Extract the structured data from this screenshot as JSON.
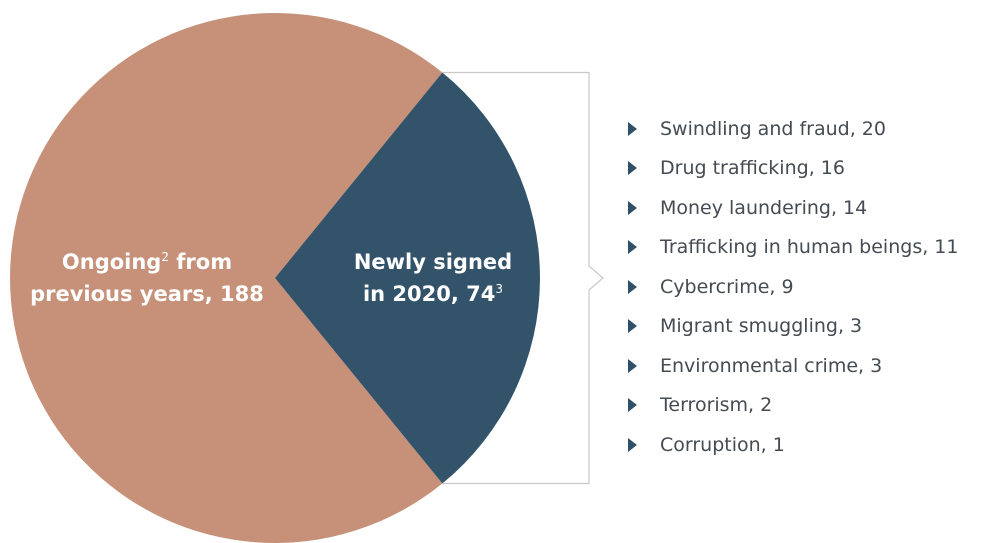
{
  "chart_data": {
    "type": "pie",
    "slices": [
      {
        "label": "Ongoing from previous years",
        "value": 188,
        "color": "#c69178",
        "label_lines": [
          {
            "text": "Ongoing",
            "sup": "2",
            "tail": " from"
          },
          {
            "text": "previous years, 188",
            "sup": "",
            "tail": ""
          }
        ]
      },
      {
        "label": "Newly signed in 2020",
        "value": 74,
        "color": "#33536b",
        "label_lines": [
          {
            "text": "Newly signed",
            "sup": "",
            "tail": ""
          },
          {
            "text": "in 2020, 74",
            "sup": "3",
            "tail": ""
          }
        ]
      }
    ],
    "breakdown": [
      {
        "label": "Swindling and fraud, 20"
      },
      {
        "label": "Drug trafficking, 16"
      },
      {
        "label": "Money laundering, 14"
      },
      {
        "label": "Trafficking in human beings, 11"
      },
      {
        "label": "Cybercrime, 9"
      },
      {
        "label": "Migrant smuggling, 3"
      },
      {
        "label": "Environmental crime, 3"
      },
      {
        "label": "Terrorism, 2"
      },
      {
        "label": "Corruption, 1"
      }
    ]
  },
  "colors": {
    "bracket": "#c8c8c8",
    "bullet": "#2f5068",
    "text": "#444b52"
  }
}
